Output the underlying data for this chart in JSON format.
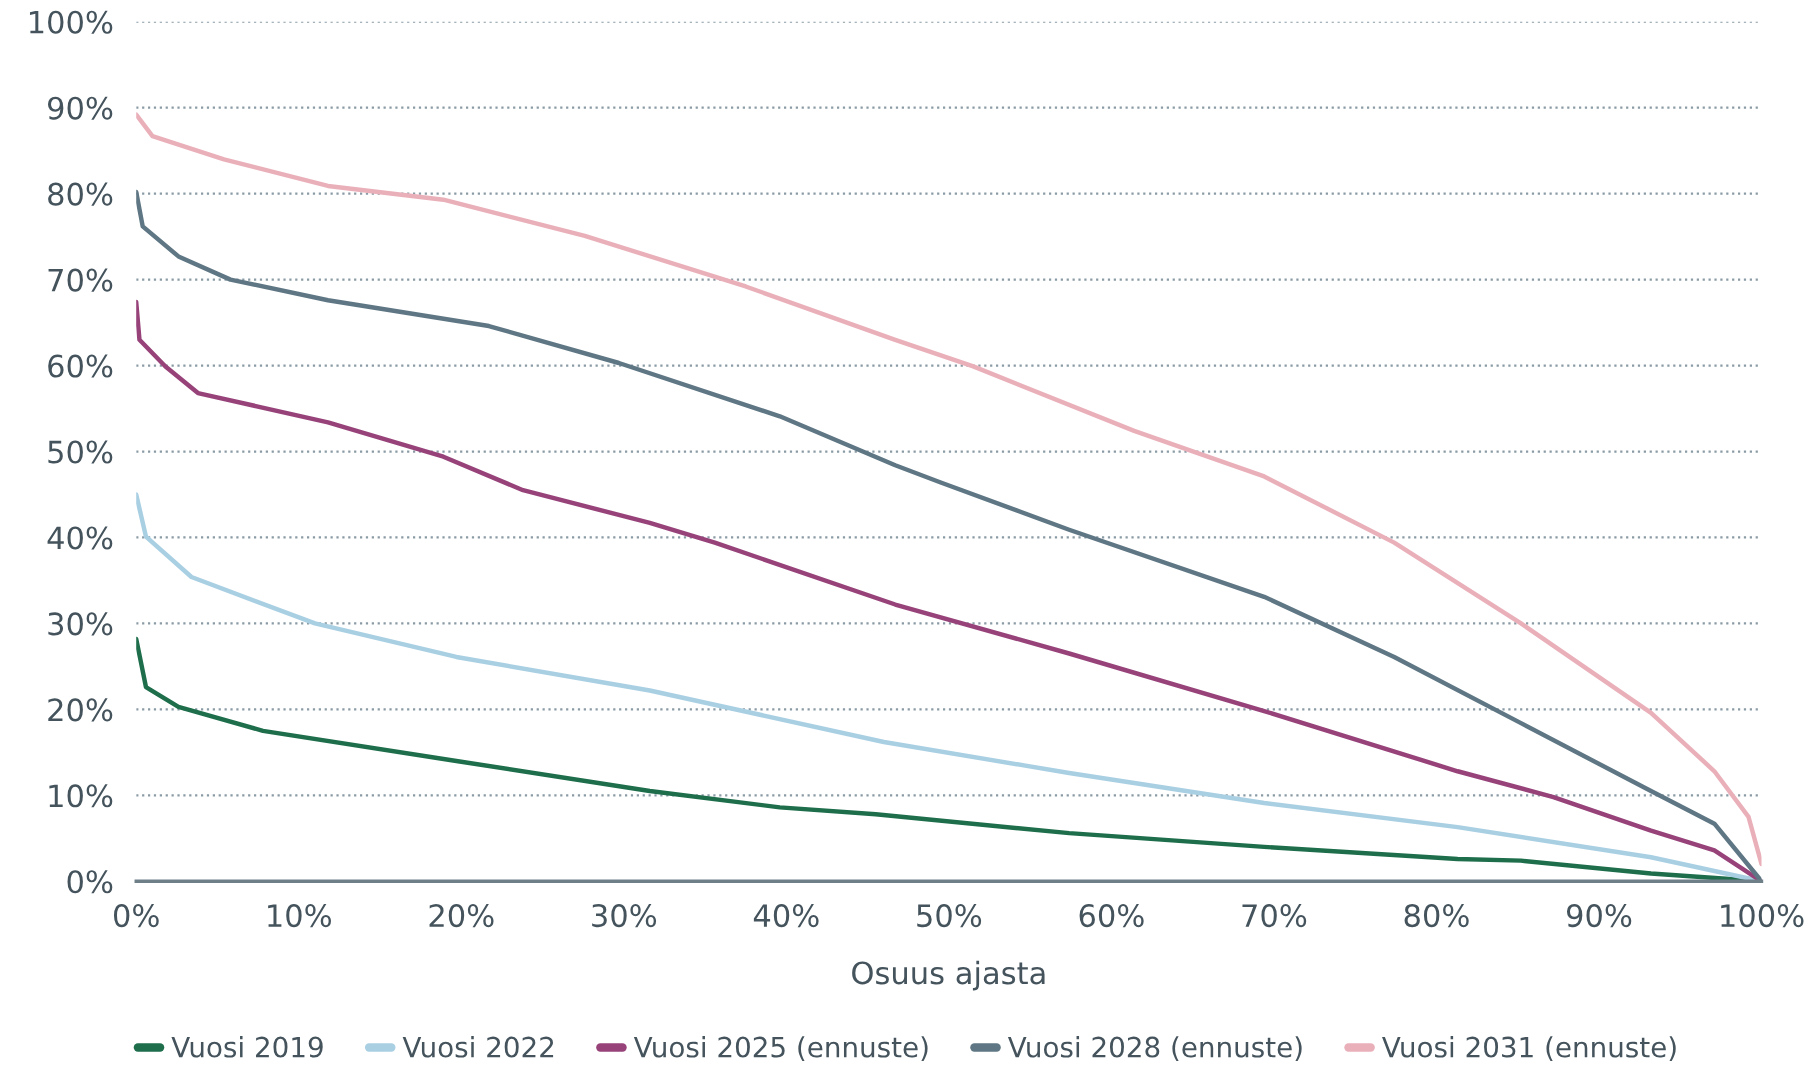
{
  "chart_data": {
    "type": "line",
    "xlabel": "Osuus ajasta",
    "xlim": [
      0,
      100
    ],
    "xticks": [
      {
        "value": 0,
        "label": "0%"
      },
      {
        "value": 10,
        "label": "10%"
      },
      {
        "value": 20,
        "label": "20%"
      },
      {
        "value": 30,
        "label": "30%"
      },
      {
        "value": 40,
        "label": "40%"
      },
      {
        "value": 50,
        "label": "50%"
      },
      {
        "value": 60,
        "label": "60%"
      },
      {
        "value": 70,
        "label": "70%"
      },
      {
        "value": 80,
        "label": "80%"
      },
      {
        "value": 90,
        "label": "90%"
      },
      {
        "value": 100,
        "label": "100%"
      }
    ],
    "ylim": [
      0,
      100
    ],
    "yticks": [
      {
        "value": 0,
        "label": "0%"
      },
      {
        "value": 10,
        "label": "10%"
      },
      {
        "value": 20,
        "label": "20%"
      },
      {
        "value": 30,
        "label": "30%"
      },
      {
        "value": 40,
        "label": "40%"
      },
      {
        "value": 50,
        "label": "50%"
      },
      {
        "value": 60,
        "label": "60%"
      },
      {
        "value": 70,
        "label": "70%"
      },
      {
        "value": 80,
        "label": "80%"
      },
      {
        "value": 90,
        "label": "90%"
      },
      {
        "value": 100,
        "label": "100%"
      }
    ],
    "grid": "y",
    "legend": "bottom",
    "line_style": "solid",
    "marker": "none",
    "series": [
      {
        "name": "Vuosi 2019",
        "color": "#1e6e4c",
        "x": [
          0,
          0.6,
          2.6,
          7.8,
          19.7,
          31.6,
          39.6,
          45.5,
          57.4,
          69.4,
          81.3,
          85.2,
          93.2,
          100
        ],
        "values": [
          28.2,
          22.6,
          20.3,
          17.5,
          14.0,
          10.5,
          8.6,
          7.8,
          5.6,
          4.0,
          2.6,
          2.4,
          0.9,
          0
        ]
      },
      {
        "name": "Vuosi 2022",
        "color": "#a9cfe3",
        "x": [
          0,
          0.6,
          3.4,
          11,
          19.7,
          31.6,
          46,
          57.4,
          69.4,
          81.3,
          93.2,
          100
        ],
        "values": [
          45.0,
          40.1,
          35.4,
          30.0,
          26.1,
          22.2,
          16.2,
          12.6,
          9.1,
          6.3,
          2.8,
          0
        ]
      },
      {
        "name": "Vuosi 2025 (ennuste)",
        "color": "#97437a",
        "x": [
          0,
          0.2,
          1.8,
          3.8,
          11.8,
          18.9,
          23.8,
          31.6,
          35.6,
          46.7,
          57.4,
          69.4,
          81.3,
          87.2,
          93.2,
          97.1,
          100
        ],
        "values": [
          67.4,
          63.0,
          59.9,
          56.8,
          53.4,
          49.4,
          45.5,
          41.7,
          39.4,
          32.2,
          26.5,
          19.8,
          12.8,
          9.8,
          5.9,
          3.6,
          0
        ]
      },
      {
        "name": "Vuosi 2028 (ennuste)",
        "color": "#5f7784",
        "x": [
          0,
          0.4,
          2.6,
          5.8,
          11.8,
          21.7,
          29.7,
          39.6,
          46.7,
          49.5,
          57.4,
          69.4,
          77.4,
          85.2,
          93.2,
          97.1,
          100
        ],
        "values": [
          80.2,
          76.2,
          72.7,
          70.0,
          67.6,
          64.6,
          60.3,
          54.1,
          48.4,
          46.4,
          40.9,
          33.1,
          26.1,
          18.4,
          10.5,
          6.7,
          0
        ]
      },
      {
        "name": "Vuosi 2031 (ennuste)",
        "color": "#eab0ba",
        "x": [
          0,
          1,
          5.4,
          11.8,
          18.9,
          27.6,
          37.5,
          46.7,
          51.5,
          61.4,
          69.4,
          77.4,
          85.2,
          93.2,
          97.1,
          99.2,
          100
        ],
        "values": [
          89.2,
          86.7,
          84.0,
          80.9,
          79.3,
          75.1,
          69.2,
          63.0,
          59.9,
          52.4,
          47.1,
          39.4,
          30.0,
          19.6,
          12.8,
          7.5,
          2
        ]
      }
    ]
  }
}
